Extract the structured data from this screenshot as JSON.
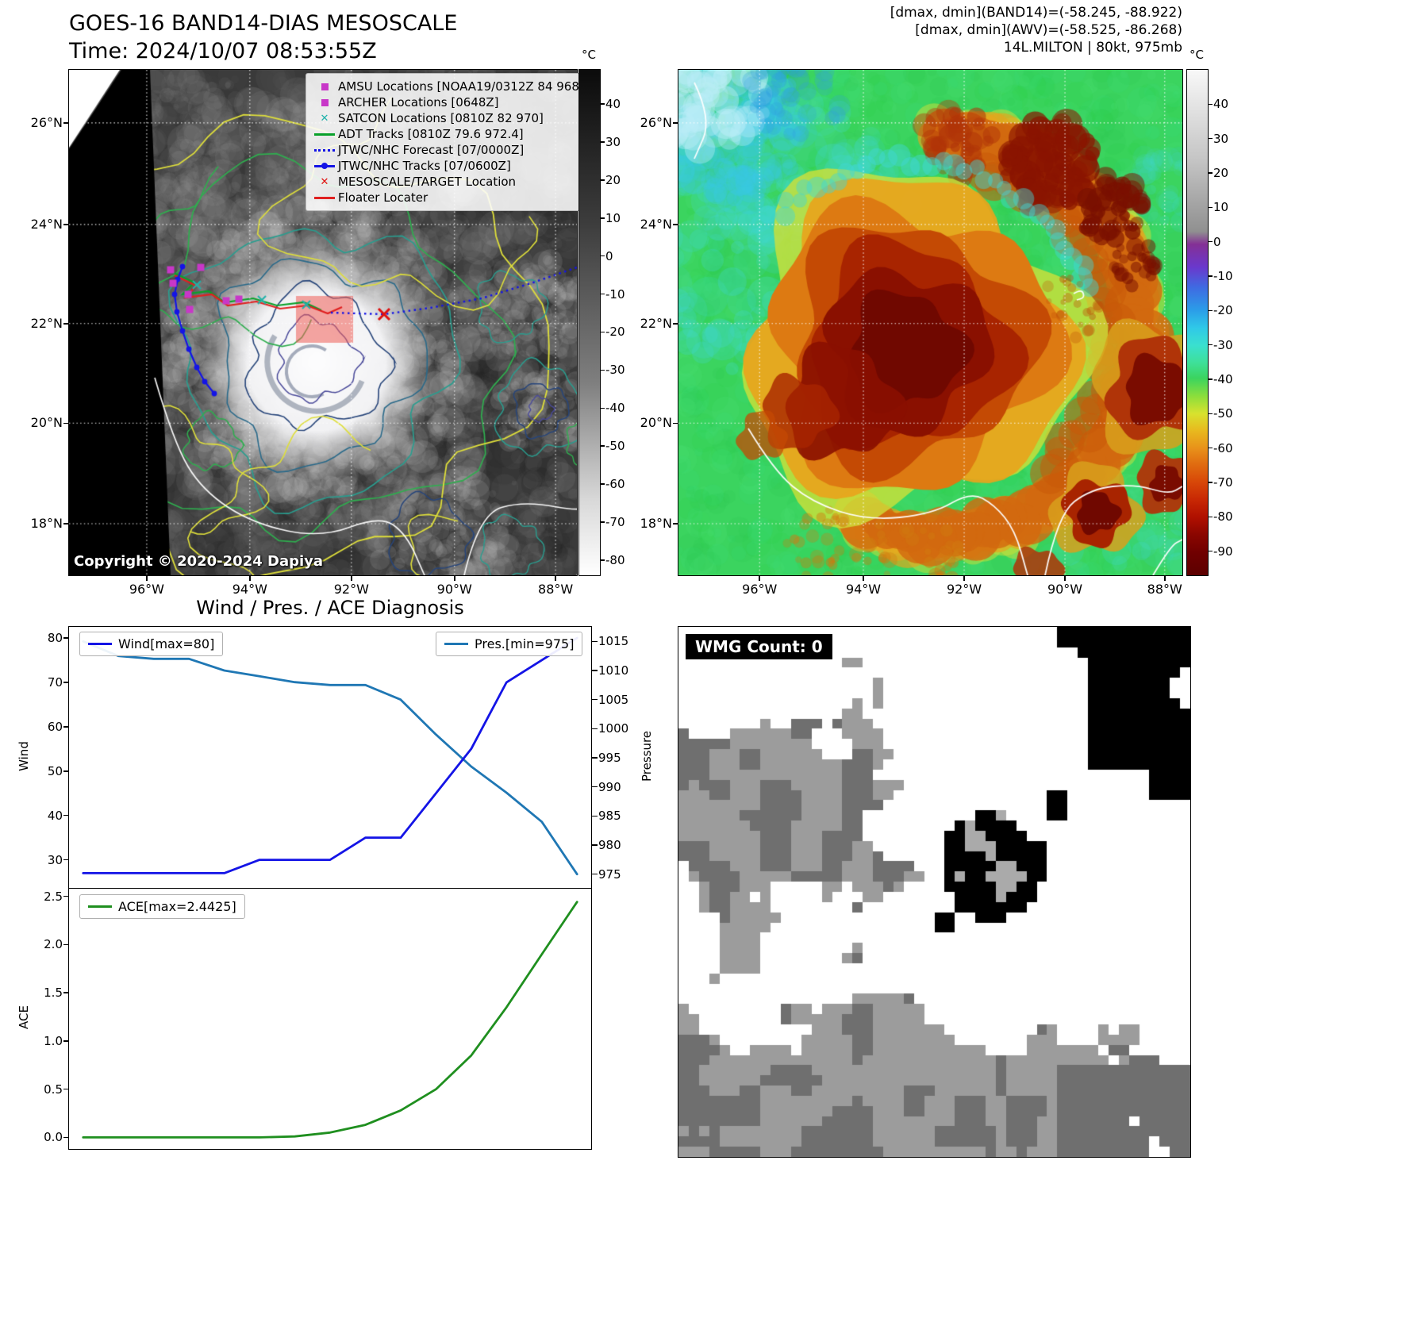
{
  "band14_panel": {
    "title": "GOES-16 BAND14-DIAS MESOSCALE",
    "time_label": "Time: 2024/10/07 08:53:55Z",
    "copyright": "Copyright © 2020-2024 Dapiya",
    "colorbar_unit": "°C",
    "colorbar_ticks": [
      40,
      30,
      20,
      10,
      0,
      -10,
      -20,
      -30,
      -40,
      -50,
      -60,
      -70,
      -80
    ],
    "lat_ticks": [
      "26°N",
      "24°N",
      "22°N",
      "20°N",
      "18°N"
    ],
    "lon_ticks": [
      "96°W",
      "94°W",
      "92°W",
      "90°W",
      "88°W"
    ],
    "legend": [
      {
        "type": "square",
        "color": "#c837c8",
        "label": "AMSU Locations [NOAA19/0312Z 84 968]"
      },
      {
        "type": "square",
        "color": "#c837c8",
        "label": "ARCHER Locations [0648Z]"
      },
      {
        "type": "x",
        "color": "#20b2aa",
        "label": "SATCON Locations [0810Z 82 970]"
      },
      {
        "type": "line",
        "color": "#0aa12a",
        "label": "ADT Tracks [0810Z 79.6 972.4]"
      },
      {
        "type": "dotted",
        "color": "#1414e6",
        "label": "JTWC/NHC Forecast [07/0000Z]"
      },
      {
        "type": "line-dot",
        "color": "#1414e6",
        "label": "JTWC/NHC Tracks [07/0600Z]"
      },
      {
        "type": "x",
        "color": "#e01010",
        "label": "MESOSCALE/TARGET Location"
      },
      {
        "type": "line",
        "color": "#e02020",
        "label": "Floater Locater"
      }
    ]
  },
  "awv_panel": {
    "header_lines": [
      "[dmax, dmin](BAND14)=(-58.245, -88.922)",
      "[dmax, dmin](AWV)=(-58.525, -86.268)",
      "14L.MILTON | 80kt, 975mb"
    ],
    "colorbar_unit": "°C",
    "colorbar_ticks": [
      40,
      30,
      20,
      10,
      0,
      -10,
      -20,
      -30,
      -40,
      -50,
      -60,
      -70,
      -80,
      -90
    ],
    "lat_ticks": [
      "26°N",
      "24°N",
      "22°N",
      "20°N",
      "18°N"
    ],
    "lon_ticks": [
      "96°W",
      "94°W",
      "92°W",
      "90°W",
      "88°W"
    ]
  },
  "wmg_panel": {
    "label": "WMG Count: 0"
  },
  "chart_data": [
    {
      "type": "line",
      "title": "Wind / Pres. / ACE Diagnosis",
      "x": [
        0,
        1,
        2,
        3,
        4,
        5,
        6,
        7,
        8,
        9,
        10,
        11,
        12,
        13,
        14
      ],
      "series": [
        {
          "name": "Wind[max=80]",
          "axis": "left",
          "color": "#1414e6",
          "values": [
            27,
            27,
            27,
            27,
            27,
            30,
            30,
            30,
            35,
            35,
            45,
            55,
            70,
            75,
            80
          ]
        },
        {
          "name": "Pres.[min=975]",
          "axis": "right",
          "color": "#1f77b4",
          "values": [
            1015,
            1012.5,
            1012,
            1012,
            1010,
            1009,
            1008,
            1007.5,
            1007.5,
            1005,
            999,
            993.5,
            989,
            984,
            975
          ]
        }
      ],
      "ylabel_left": "Wind",
      "ylabel_right": "Pressure",
      "yticks_left": [
        30,
        40,
        50,
        60,
        70,
        80
      ],
      "yticks_right": [
        975,
        980,
        985,
        990,
        995,
        1000,
        1005,
        1010,
        1015
      ],
      "ylim_left": [
        23.5,
        82.5
      ],
      "ylim_right": [
        972.5,
        1017.5
      ],
      "grid": false,
      "legend_position": "upper left / upper right"
    },
    {
      "type": "line",
      "x": [
        0,
        1,
        2,
        3,
        4,
        5,
        6,
        7,
        8,
        9,
        10,
        11,
        12,
        13,
        14
      ],
      "series": [
        {
          "name": "ACE[max=2.4425]",
          "color": "#1f8f1f",
          "values": [
            0,
            0,
            0,
            0,
            0,
            0,
            0.01,
            0.05,
            0.13,
            0.28,
            0.5,
            0.85,
            1.35,
            1.9,
            2.4425
          ]
        }
      ],
      "ylabel": "ACE",
      "yticks": [
        0,
        0.5,
        1,
        1.5,
        2,
        2.5
      ],
      "ylim": [
        -0.12,
        2.58
      ],
      "grid": false,
      "legend_position": "upper left"
    }
  ]
}
